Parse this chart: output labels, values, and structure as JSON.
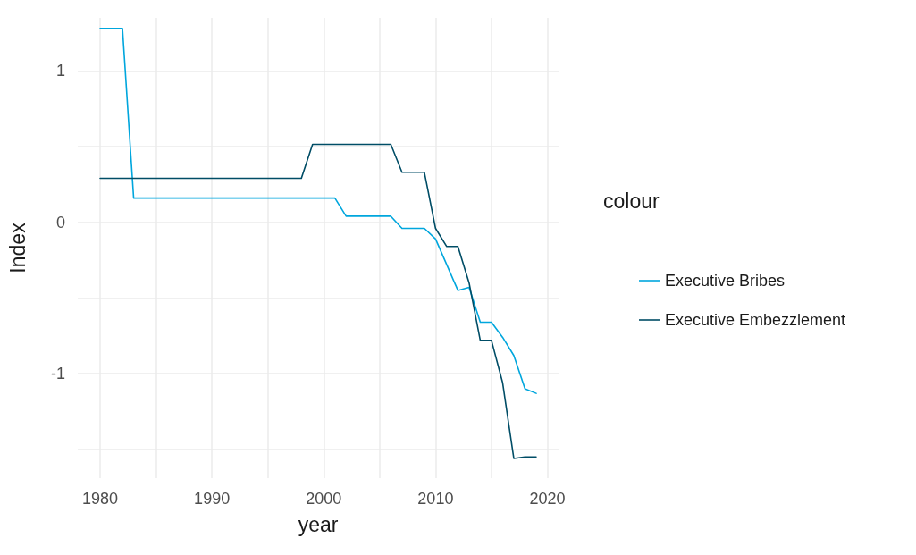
{
  "chart_data": {
    "type": "line",
    "xlabel": "year",
    "ylabel": "Index",
    "legend_title": "colour",
    "legend": "right",
    "grid": true,
    "marker": "none",
    "line_style": "solid",
    "x": [
      1980,
      1981,
      1982,
      1983,
      1984,
      1985,
      1986,
      1987,
      1988,
      1989,
      1990,
      1991,
      1992,
      1993,
      1994,
      1995,
      1996,
      1997,
      1998,
      1999,
      2000,
      2001,
      2002,
      2003,
      2004,
      2005,
      2006,
      2007,
      2008,
      2009,
      2010,
      2011,
      2012,
      2013,
      2014,
      2015,
      2016,
      2017,
      2018,
      2019
    ],
    "xlim": [
      1978,
      2021
    ],
    "xticks": [
      1980,
      {
        "value": 1985,
        "label": null
      },
      1990,
      {
        "value": 1995,
        "label": null
      },
      2000,
      {
        "value": 2005,
        "label": null
      },
      2010,
      {
        "value": 2015,
        "label": null
      },
      2020
    ],
    "ylim": [
      -1.69,
      1.35
    ],
    "yticks": [
      {
        "value": -1.5,
        "label": null
      },
      -1,
      {
        "value": -0.5,
        "label": null
      },
      0,
      {
        "value": 0.5,
        "label": null
      },
      1
    ],
    "series": [
      {
        "name": "Executive Bribes",
        "color": "#00a6dd",
        "values": [
          1.28,
          1.28,
          1.28,
          0.16,
          0.16,
          0.16,
          0.16,
          0.16,
          0.16,
          0.16,
          0.16,
          0.16,
          0.16,
          0.16,
          0.16,
          0.16,
          0.16,
          0.16,
          0.16,
          0.16,
          0.16,
          0.16,
          0.04,
          0.04,
          0.04,
          0.04,
          0.04,
          -0.04,
          -0.04,
          -0.04,
          -0.11,
          -0.28,
          -0.45,
          -0.43,
          -0.66,
          -0.66,
          -0.76,
          -0.88,
          -1.1,
          -1.13
        ]
      },
      {
        "name": "Executive Embezzlement",
        "color": "#004d66",
        "values": [
          0.29,
          0.29,
          0.29,
          0.29,
          0.29,
          0.29,
          0.29,
          0.29,
          0.29,
          0.29,
          0.29,
          0.29,
          0.29,
          0.29,
          0.29,
          0.29,
          0.29,
          0.29,
          0.29,
          0.515,
          0.515,
          0.515,
          0.515,
          0.515,
          0.515,
          0.515,
          0.515,
          0.33,
          0.33,
          0.33,
          -0.04,
          -0.16,
          -0.16,
          -0.4,
          -0.78,
          -0.78,
          -1.06,
          -1.56,
          -1.55,
          -1.55
        ]
      }
    ]
  }
}
